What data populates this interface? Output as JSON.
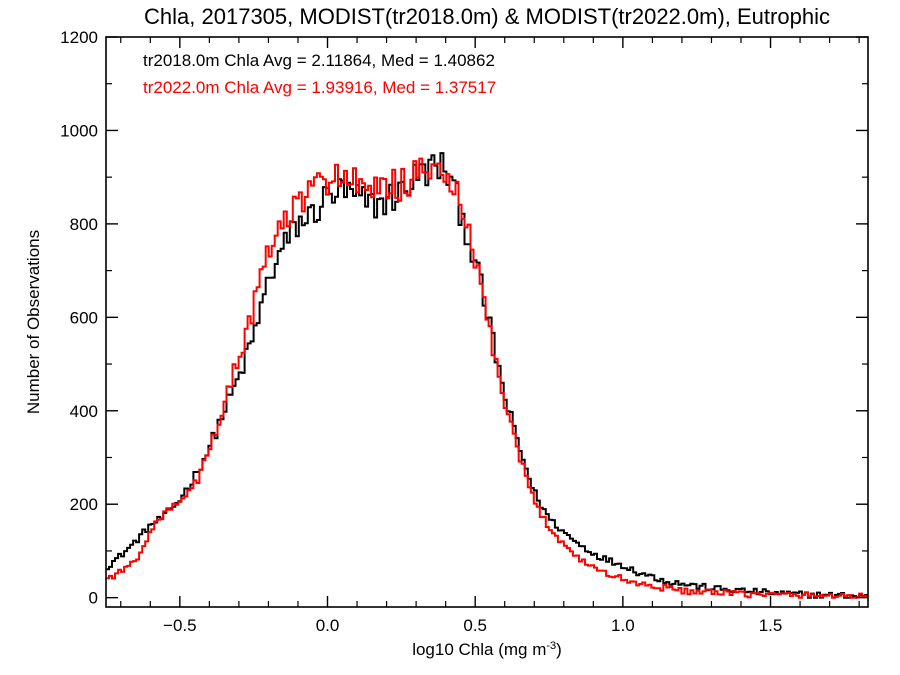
{
  "chart_data": {
    "type": "line",
    "step": true,
    "title": "Chla, 2017305, MODIST(tr2018.0m) & MODIST(tr2022.0m), Eutrophic",
    "xlabel": "log10 Chla (mg m",
    "xlabel_sup": "-3",
    "xlabel_close": ")",
    "ylabel": "Number of Observations",
    "xlim": [
      -0.75,
      1.83
    ],
    "ylim": [
      -20,
      1200
    ],
    "grid": false,
    "x_ticks": [
      -0.5,
      0.0,
      0.5,
      1.0,
      1.5
    ],
    "x_tick_labels": [
      "−0.5",
      "0.0",
      "0.5",
      "1.0",
      "1.5"
    ],
    "y_ticks": [
      0,
      200,
      400,
      600,
      800,
      1000,
      1200
    ],
    "y_tick_labels": [
      "0",
      "200",
      "400",
      "600",
      "800",
      "1000",
      "1200"
    ],
    "annotations": [
      {
        "text": "tr2018.0m Chla Avg = 2.11864, Med = 1.40862",
        "color": "#000000"
      },
      {
        "text": "tr2022.0m Chla Avg = 1.93916, Med = 1.37517",
        "color": "#ff0000"
      }
    ],
    "series": [
      {
        "color": "#000000",
        "x": [
          -0.75,
          -0.7,
          -0.65,
          -0.6,
          -0.55,
          -0.5,
          -0.45,
          -0.4,
          -0.35,
          -0.3,
          -0.25,
          -0.2,
          -0.15,
          -0.1,
          -0.05,
          0.0,
          0.05,
          0.1,
          0.15,
          0.2,
          0.25,
          0.3,
          0.35,
          0.4,
          0.45,
          0.5,
          0.55,
          0.6,
          0.65,
          0.7,
          0.75,
          0.8,
          0.85,
          0.9,
          0.95,
          1.0,
          1.05,
          1.1,
          1.15,
          1.2,
          1.3,
          1.4,
          1.5,
          1.6,
          1.7,
          1.83
        ],
        "y": [
          65,
          90,
          120,
          155,
          175,
          210,
          260,
          320,
          400,
          470,
          560,
          680,
          750,
          800,
          820,
          860,
          870,
          855,
          840,
          850,
          870,
          900,
          920,
          920,
          830,
          720,
          580,
          430,
          320,
          225,
          170,
          140,
          115,
          95,
          80,
          70,
          55,
          45,
          35,
          30,
          20,
          15,
          10,
          7,
          5,
          3
        ]
      },
      {
        "color": "#ff0000",
        "x": [
          -0.75,
          -0.7,
          -0.65,
          -0.6,
          -0.55,
          -0.5,
          -0.45,
          -0.4,
          -0.35,
          -0.3,
          -0.25,
          -0.2,
          -0.15,
          -0.1,
          -0.05,
          0.0,
          0.05,
          0.1,
          0.15,
          0.2,
          0.25,
          0.3,
          0.35,
          0.4,
          0.45,
          0.5,
          0.55,
          0.6,
          0.65,
          0.7,
          0.75,
          0.8,
          0.85,
          0.9,
          0.95,
          1.0,
          1.05,
          1.1,
          1.15,
          1.2,
          1.3,
          1.4,
          1.5,
          1.6,
          1.7,
          1.83
        ],
        "y": [
          40,
          55,
          80,
          140,
          185,
          200,
          240,
          310,
          420,
          510,
          620,
          740,
          800,
          840,
          870,
          900,
          905,
          880,
          860,
          880,
          885,
          900,
          910,
          920,
          835,
          720,
          570,
          410,
          300,
          205,
          150,
          115,
          85,
          65,
          50,
          40,
          30,
          25,
          20,
          15,
          10,
          8,
          6,
          5,
          4,
          3
        ]
      }
    ]
  }
}
